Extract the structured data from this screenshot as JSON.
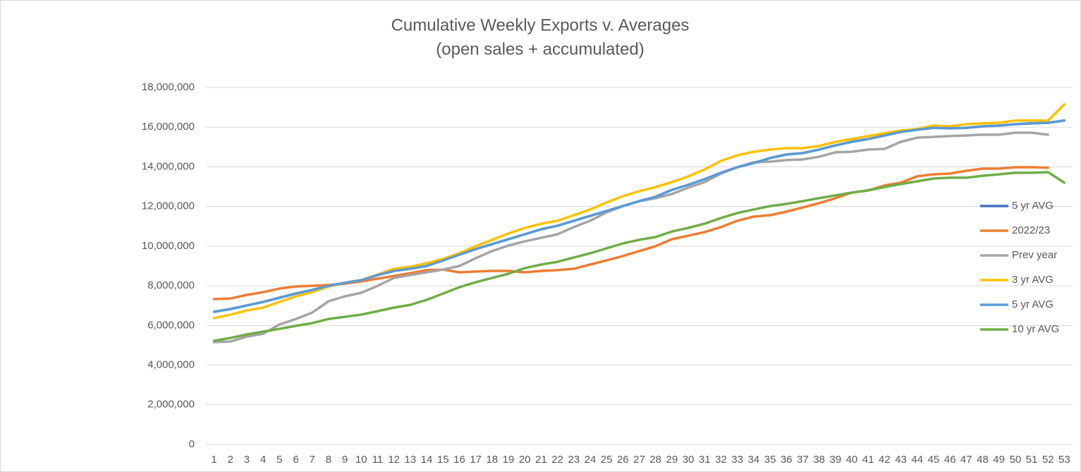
{
  "chart_data": {
    "type": "line",
    "title": "Cumulative Weekly Exports v. Averages",
    "subtitle": "(open sales + accumulated)",
    "categories": [
      1,
      2,
      3,
      4,
      5,
      6,
      7,
      8,
      9,
      10,
      11,
      12,
      13,
      14,
      15,
      16,
      17,
      18,
      19,
      20,
      21,
      22,
      23,
      24,
      25,
      26,
      27,
      28,
      29,
      30,
      31,
      32,
      33,
      34,
      35,
      36,
      37,
      38,
      39,
      40,
      41,
      42,
      43,
      44,
      45,
      46,
      47,
      48,
      49,
      50,
      51,
      52,
      53
    ],
    "ylim": [
      0,
      18000000
    ],
    "yticks": [
      0,
      {
        "value": 2000000,
        "label": "2,000,000"
      },
      {
        "value": 4000000,
        "label": "4,000,000"
      },
      {
        "value": 6000000,
        "label": "6,000,000"
      },
      {
        "value": 8000000,
        "label": "8,000,000"
      },
      {
        "value": 10000000,
        "label": "10,000,000"
      },
      {
        "value": 12000000,
        "label": "12,000,000"
      },
      {
        "value": 14000000,
        "label": "14,000,000"
      },
      {
        "value": 16000000,
        "label": "16,000,000"
      },
      {
        "value": 18000000,
        "label": "18,000,000"
      }
    ],
    "grid": true,
    "legend": "right",
    "series": [
      {
        "name": "5 yr AVG",
        "color": "#4472c4",
        "values": [
          6690000,
          6830000,
          7010000,
          7190000,
          7400000,
          7610000,
          7790000,
          8000000,
          8150000,
          8290000,
          8540000,
          8750000,
          8860000,
          9000000,
          9280000,
          9570000,
          9850000,
          10100000,
          10350000,
          10600000,
          10850000,
          11030000,
          11280000,
          11530000,
          11770000,
          12020000,
          12270000,
          12490000,
          12840000,
          13090000,
          13380000,
          13700000,
          13980000,
          14190000,
          14440000,
          14620000,
          14690000,
          14870000,
          15080000,
          15260000,
          15400000,
          15580000,
          15760000,
          15870000,
          15970000,
          15940000,
          15970000,
          16040000,
          16080000,
          16150000,
          16190000,
          16220000,
          16330000
        ]
      },
      {
        "name": "2022/23",
        "color": "#ed7d31",
        "values": [
          7330000,
          7360000,
          7540000,
          7680000,
          7860000,
          7970000,
          8000000,
          8040000,
          8110000,
          8220000,
          8360000,
          8500000,
          8640000,
          8790000,
          8820000,
          8680000,
          8720000,
          8750000,
          8750000,
          8680000,
          8750000,
          8790000,
          8860000,
          9070000,
          9280000,
          9500000,
          9750000,
          10000000,
          10350000,
          10530000,
          10710000,
          10960000,
          11280000,
          11490000,
          11560000,
          11740000,
          11950000,
          12170000,
          12420000,
          12700000,
          12810000,
          13060000,
          13200000,
          13520000,
          13620000,
          13660000,
          13800000,
          13910000,
          13910000,
          13980000,
          13980000,
          13950000,
          null
        ]
      },
      {
        "name": "Prev  year",
        "color": "#a5a5a5",
        "values": [
          5160000,
          5190000,
          5440000,
          5580000,
          6050000,
          6330000,
          6650000,
          7220000,
          7470000,
          7650000,
          8000000,
          8400000,
          8540000,
          8680000,
          8820000,
          9000000,
          9390000,
          9750000,
          10030000,
          10240000,
          10420000,
          10600000,
          10960000,
          11280000,
          11700000,
          12020000,
          12270000,
          12420000,
          12630000,
          12950000,
          13230000,
          13660000,
          13980000,
          14230000,
          14260000,
          14340000,
          14370000,
          14510000,
          14730000,
          14760000,
          14870000,
          14900000,
          15260000,
          15470000,
          15510000,
          15550000,
          15580000,
          15620000,
          15620000,
          15720000,
          15720000,
          15620000,
          null
        ]
      },
      {
        "name": "3 yr AVG",
        "color": "#ffc000",
        "values": [
          6370000,
          6550000,
          6760000,
          6900000,
          7190000,
          7470000,
          7680000,
          7970000,
          8150000,
          8290000,
          8570000,
          8860000,
          8960000,
          9140000,
          9360000,
          9640000,
          10000000,
          10320000,
          10640000,
          10920000,
          11130000,
          11280000,
          11560000,
          11850000,
          12200000,
          12520000,
          12770000,
          12980000,
          13230000,
          13520000,
          13870000,
          14300000,
          14580000,
          14760000,
          14870000,
          14940000,
          14940000,
          15050000,
          15260000,
          15400000,
          15550000,
          15690000,
          15830000,
          15900000,
          16080000,
          16040000,
          16150000,
          16190000,
          16220000,
          16330000,
          16330000,
          16330000,
          17150000
        ]
      },
      {
        "name": "5 yr AVG",
        "color": "#5b9bd5",
        "values": [
          6690000,
          6830000,
          7010000,
          7190000,
          7400000,
          7610000,
          7790000,
          8000000,
          8150000,
          8290000,
          8540000,
          8750000,
          8860000,
          9000000,
          9280000,
          9570000,
          9850000,
          10100000,
          10350000,
          10600000,
          10850000,
          11030000,
          11280000,
          11530000,
          11770000,
          12020000,
          12270000,
          12490000,
          12840000,
          13090000,
          13380000,
          13700000,
          13980000,
          14190000,
          14440000,
          14620000,
          14690000,
          14870000,
          15080000,
          15260000,
          15400000,
          15580000,
          15760000,
          15870000,
          15970000,
          15940000,
          15970000,
          16040000,
          16080000,
          16150000,
          16190000,
          16220000,
          16330000
        ]
      },
      {
        "name": "10 yr AVG",
        "color": "#70ad47",
        "values": [
          5230000,
          5370000,
          5550000,
          5690000,
          5830000,
          5980000,
          6120000,
          6330000,
          6440000,
          6550000,
          6720000,
          6900000,
          7040000,
          7290000,
          7610000,
          7930000,
          8180000,
          8400000,
          8610000,
          8890000,
          9070000,
          9210000,
          9430000,
          9640000,
          9890000,
          10140000,
          10320000,
          10460000,
          10740000,
          10920000,
          11130000,
          11420000,
          11670000,
          11850000,
          12020000,
          12130000,
          12270000,
          12420000,
          12560000,
          12700000,
          12810000,
          12980000,
          13130000,
          13270000,
          13410000,
          13450000,
          13450000,
          13550000,
          13620000,
          13700000,
          13700000,
          13730000,
          13200000
        ]
      }
    ]
  }
}
